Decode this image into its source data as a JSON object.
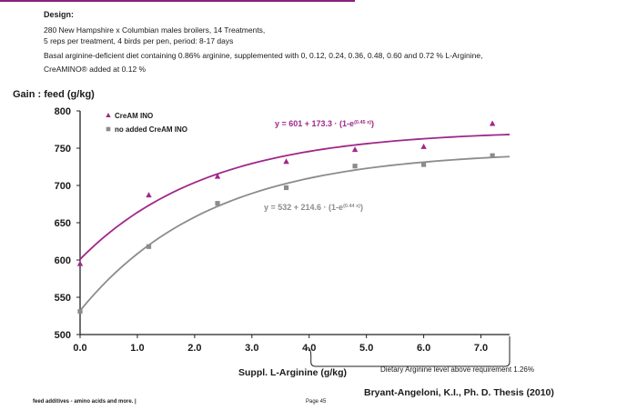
{
  "design": {
    "heading": "Design:",
    "lines": [
      "280 New Hampshire x Columbian males broilers, 14 Treatments,",
      "5 reps per treatment, 4 birds per pen, period: 8-17 days",
      "Basal arginine-deficient diet containing 0.86% arginine, supplemented with 0, 0.12, 0.24, 0.36, 0.48, 0.60 and 0.72 % L-Arginine,",
      "CreAMINO® added at 0.12 %"
    ]
  },
  "chart_data": {
    "type": "scatter",
    "ylabel": "Gain : feed (g/kg)",
    "xlabel": "Suppl. L-Arginine (g/kg)",
    "xlim": [
      0,
      7.5
    ],
    "ylim": [
      500,
      800
    ],
    "x_ticks": [
      "0.0",
      "1.0",
      "2.0",
      "3.0",
      "4.0",
      "5.0",
      "6.0",
      "7.0"
    ],
    "y_ticks": [
      "500",
      "550",
      "600",
      "650",
      "700",
      "750",
      "800"
    ],
    "legend_position": "top-left",
    "grid": false,
    "series": [
      {
        "name": "CreAM INO",
        "marker": "triangle",
        "color": "#a0278a",
        "x": [
          0,
          1.2,
          2.4,
          3.6,
          4.8,
          6.0,
          7.2
        ],
        "y": [
          595,
          687,
          712,
          732,
          748,
          752,
          783
        ],
        "fit": {
          "a": 601,
          "b": 173.3,
          "k": 0.45,
          "equation_text": "y = 601 + 173.3 · (1-e",
          "equation_exp": "(0.45 x)",
          "equation_close": ")"
        }
      },
      {
        "name": "no added CreAM INO",
        "marker": "square",
        "color": "#8c8c8c",
        "x": [
          0,
          1.2,
          2.4,
          3.6,
          4.8,
          6.0,
          7.2
        ],
        "y": [
          531,
          618,
          676,
          697,
          726,
          728,
          740
        ],
        "fit": {
          "a": 532,
          "b": 214.6,
          "k": 0.44,
          "equation_text": "y = 532 + 214.6 · (1-e",
          "equation_exp": "(0.44 x)",
          "equation_close": ")"
        }
      }
    ],
    "annotation": "Dietary Arginine level above requirement 1.26%"
  },
  "citation": "Bryant-Angeloni,  K.I., Ph. D. Thesis (2010)",
  "footer": {
    "left": "feed additives - amino acids and more.  |",
    "page": "Page 45"
  }
}
